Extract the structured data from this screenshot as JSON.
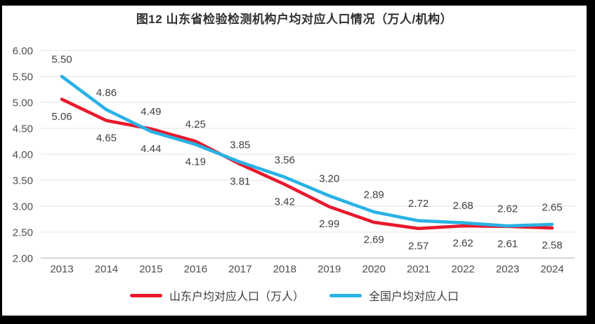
{
  "frame": {
    "border_color": "#000000",
    "panel_background": "#ffffff"
  },
  "chart_data": {
    "type": "line",
    "title": "图12 山东省检验检测机构户均对应人口情况（万人/机构）",
    "categories": [
      "2013",
      "2014",
      "2015",
      "2016",
      "2017",
      "2018",
      "2019",
      "2020",
      "2021",
      "2022",
      "2023",
      "2024"
    ],
    "series": [
      {
        "name": "山东户均对应人口（万人）",
        "color": "#e8192c",
        "values": [
          5.06,
          4.65,
          4.49,
          4.25,
          3.81,
          3.42,
          2.99,
          2.69,
          2.57,
          2.62,
          2.61,
          2.58
        ]
      },
      {
        "name": "全国户均对应人口",
        "color": "#29b2e5",
        "values": [
          5.5,
          4.86,
          4.44,
          4.19,
          3.85,
          3.56,
          3.2,
          2.89,
          2.72,
          2.68,
          2.62,
          2.65
        ]
      }
    ],
    "xlabel": "",
    "ylabel": "",
    "ylim": [
      2.0,
      6.0
    ],
    "ytick_labels": [
      "6.00",
      "5.50",
      "5.00",
      "4.50",
      "4.00",
      "3.50",
      "3.00",
      "2.50",
      "2.00"
    ],
    "grid": true,
    "data_labels": true,
    "legend_position": "bottom",
    "colors": {
      "grid": "#e3e3e6",
      "axis": "#c9c9cd",
      "tick_text": "#4d4d4d",
      "data_label_text": "#404040",
      "title_text": "#2f2f2f"
    }
  }
}
